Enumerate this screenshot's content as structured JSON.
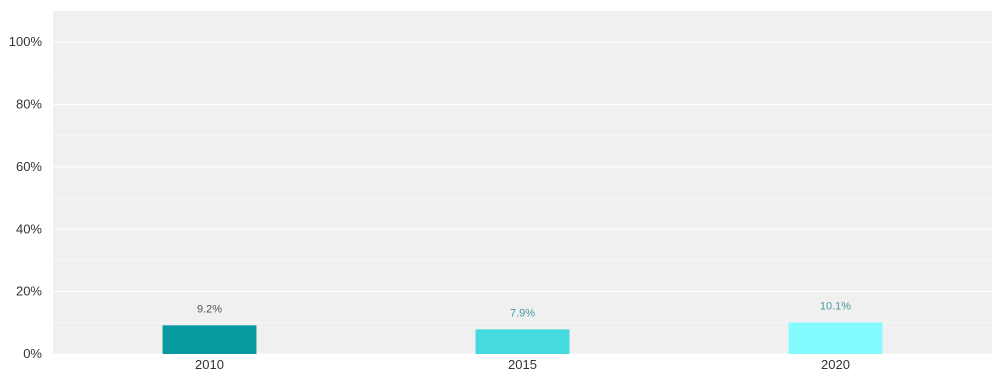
{
  "chart_data": {
    "type": "bar",
    "categories": [
      "2010",
      "2015",
      "2020"
    ],
    "values": [
      9.2,
      7.9,
      10.1
    ],
    "data_labels": [
      "9.2%",
      "7.9%",
      "10.1%"
    ],
    "bar_colors": [
      "#089aa1",
      "#45d9e0",
      "#84fbff"
    ],
    "label_colors": [
      "#555555",
      "#4a9aa0",
      "#4a9aa0"
    ],
    "y_ticks": [
      0,
      20,
      40,
      60,
      80,
      100
    ],
    "y_tick_labels": [
      "0%",
      "20%",
      "40%",
      "60%",
      "80%",
      "100%"
    ],
    "ylim": [
      0,
      110
    ],
    "grid": true,
    "plot_background": "#f0f0f0",
    "grid_color": "#ffffff"
  }
}
